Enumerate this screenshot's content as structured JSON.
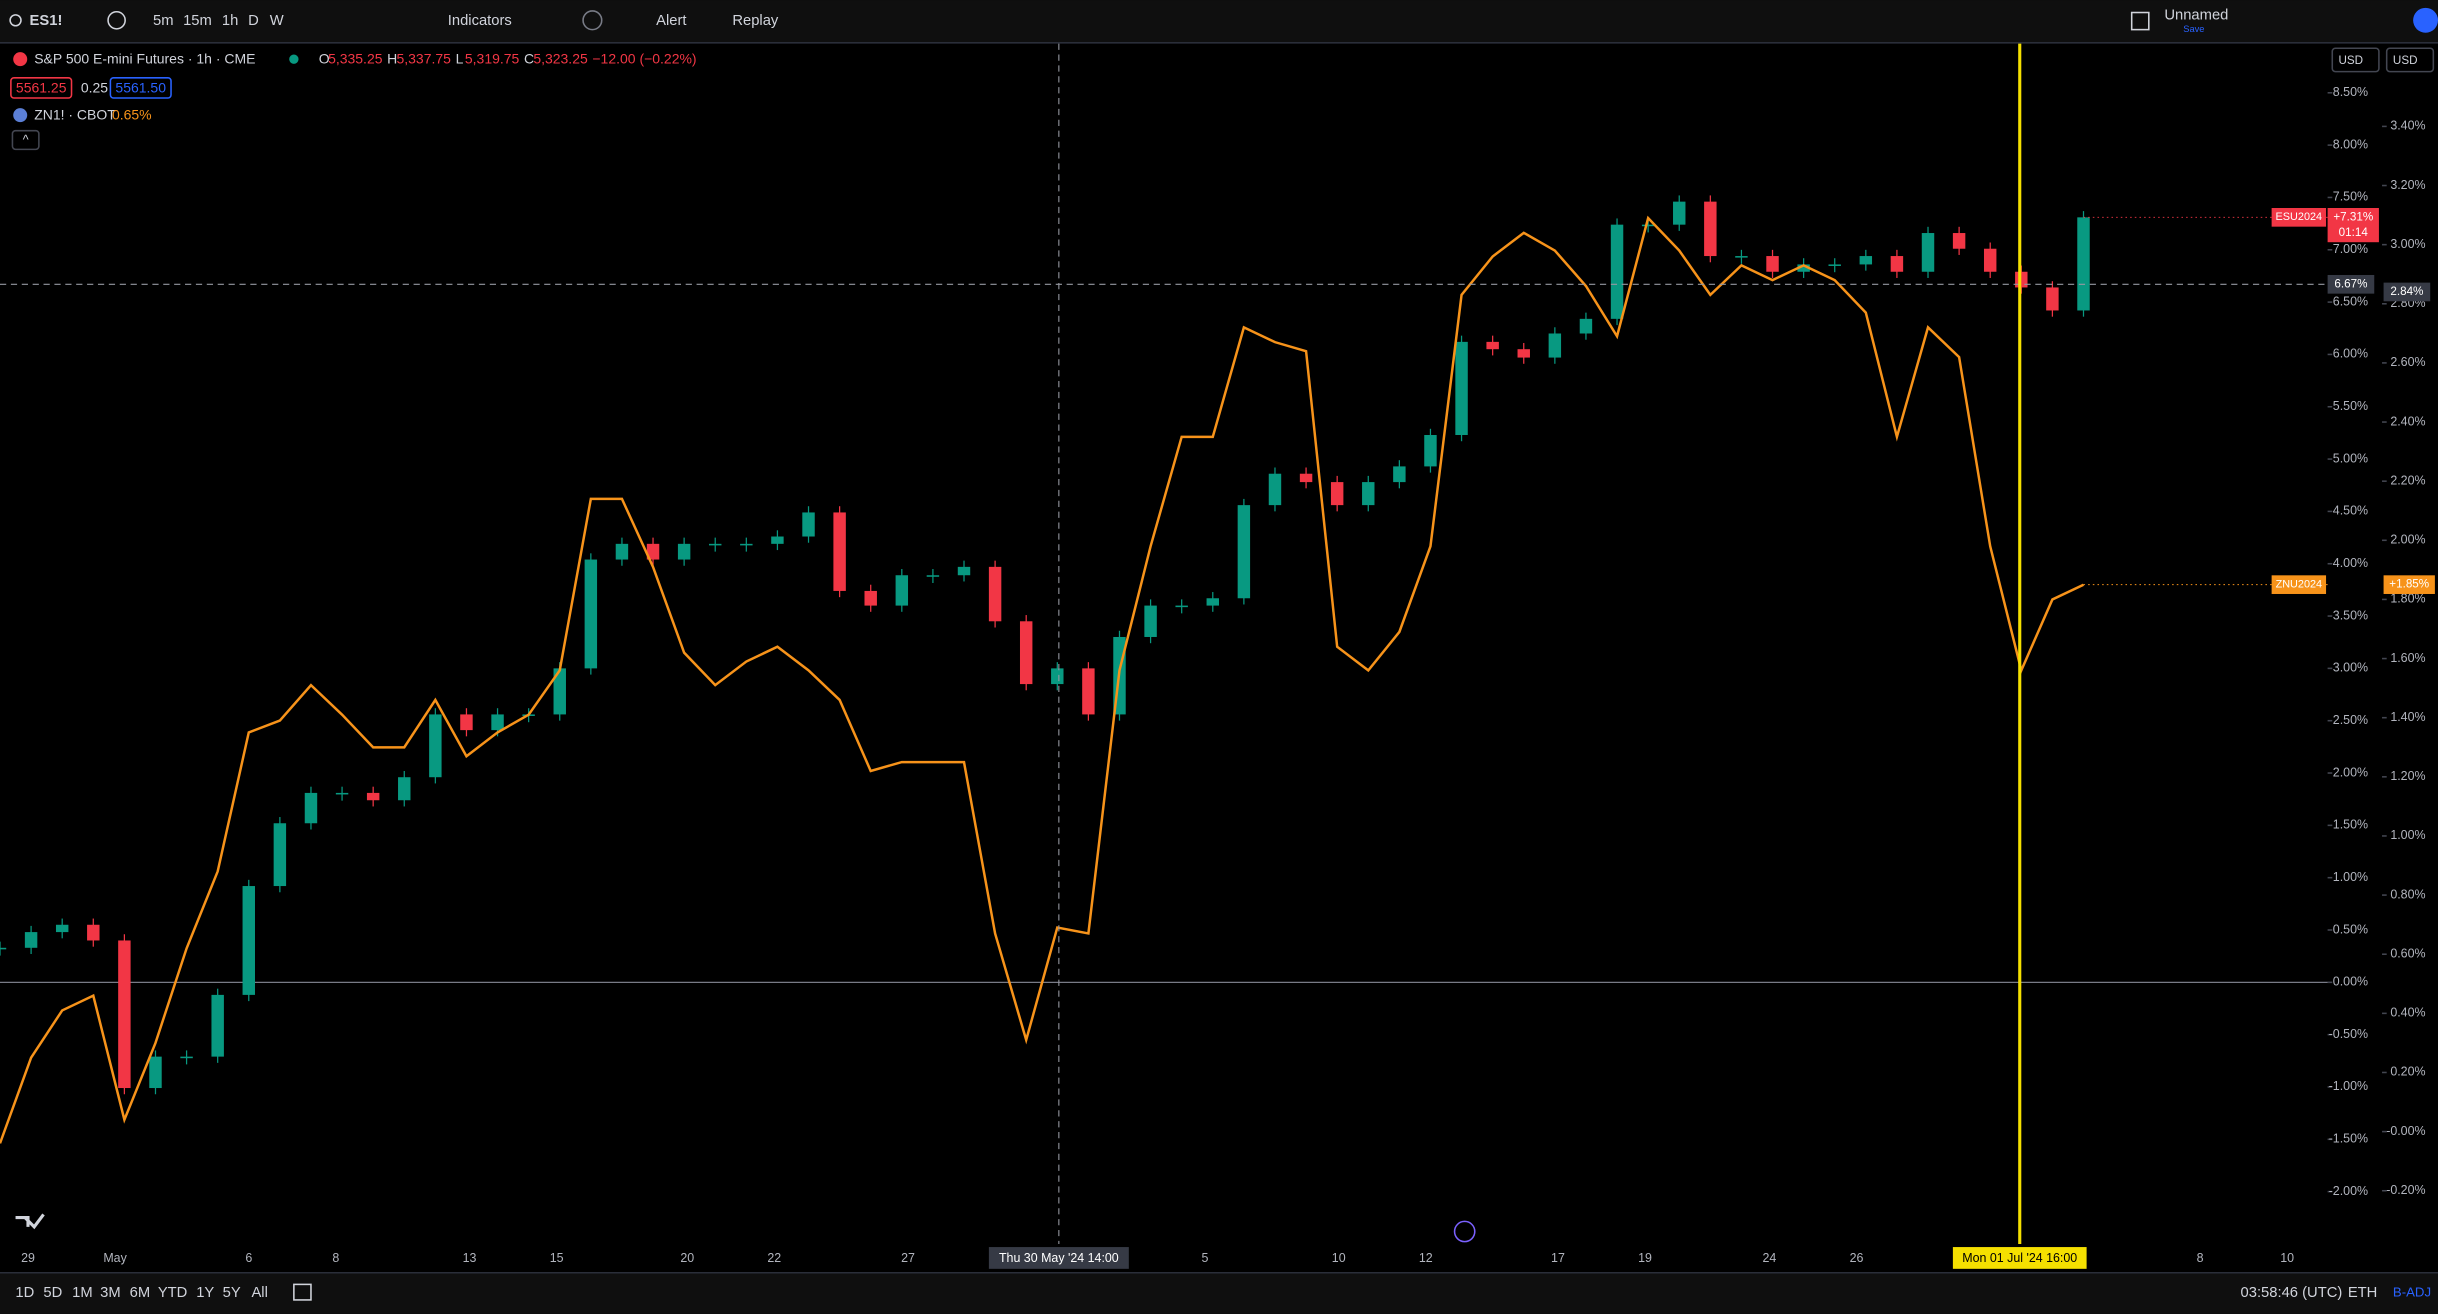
{
  "toolbar": {
    "symbol": "ES1!",
    "intervals": [
      "5m",
      "15m",
      "1h",
      "D",
      "W"
    ],
    "indicators": "Indicators",
    "alert": "Alert",
    "replay": "Replay",
    "layout_name": "Unnamed",
    "save": "Save"
  },
  "legend": {
    "main": "S&P 500 E-mini Futures · 1h · CME",
    "open_label": "O",
    "open": "5,335.25",
    "high_label": "H",
    "high": "5,337.75",
    "low_label": "L",
    "low": "5,319.75",
    "close_label": "C",
    "close": "5,323.25",
    "change": "−12.00 (−0.22%)",
    "bid": "5561.25",
    "spread": "0.25",
    "ask": "5561.50",
    "compare": "ZN1! · CBOT",
    "compare_change": "0.65%"
  },
  "currency": [
    "USD",
    "USD"
  ],
  "chart_data": {
    "type": "line",
    "series": [
      {
        "name": "ESU2024",
        "style": "candles",
        "up_color": "#089981",
        "down_color": "#f23645",
        "color": "#f23645",
        "last_label": "+7.31%",
        "countdown": "01:14",
        "values": [
          0.33,
          0.48,
          0.55,
          0.4,
          -1.01,
          -0.71,
          -0.71,
          -0.12,
          0.92,
          1.52,
          1.81,
          1.81,
          1.74,
          1.96,
          2.56,
          2.41,
          2.56,
          2.56,
          3.0,
          4.04,
          4.19,
          4.04,
          4.19,
          4.19,
          4.19,
          4.26,
          4.49,
          3.74,
          3.6,
          3.89,
          3.89,
          3.97,
          3.45,
          2.85,
          3.0,
          2.56,
          3.3,
          3.6,
          3.6,
          3.67,
          4.56,
          4.86,
          4.78,
          4.56,
          4.78,
          4.93,
          5.23,
          6.12,
          6.05,
          5.97,
          6.2,
          6.34,
          7.24,
          7.24,
          7.46,
          6.94,
          6.94,
          6.79,
          6.86,
          6.86,
          6.94,
          6.79,
          7.16,
          7.01,
          6.79,
          6.64,
          6.42,
          7.31
        ]
      },
      {
        "name": "ZNU2024",
        "style": "line",
        "color": "#f7931a",
        "axis": "y2",
        "last_label": "+1.85%",
        "values": [
          -0.04,
          0.25,
          0.41,
          0.46,
          0.04,
          0.3,
          0.62,
          0.88,
          1.35,
          1.39,
          1.51,
          1.41,
          1.3,
          1.3,
          1.46,
          1.27,
          1.35,
          1.41,
          1.56,
          2.14,
          2.14,
          1.91,
          1.62,
          1.51,
          1.59,
          1.64,
          1.56,
          1.46,
          1.22,
          1.25,
          1.25,
          1.25,
          0.67,
          0.31,
          0.69,
          0.67,
          1.56,
          1.98,
          2.35,
          2.35,
          2.72,
          2.67,
          2.64,
          1.64,
          1.56,
          1.69,
          1.98,
          2.83,
          2.96,
          3.04,
          2.98,
          2.86,
          2.69,
          3.09,
          2.98,
          2.83,
          2.93,
          2.88,
          2.93,
          2.88,
          2.77,
          2.35,
          2.72,
          2.62,
          1.98,
          1.56,
          1.8,
          1.85
        ]
      }
    ],
    "ylim": [
      -2.5,
      8.97
    ],
    "yticks": [
      {
        "value": 8.5,
        "label": "8.50%"
      },
      {
        "value": 8,
        "label": "8.00%"
      },
      {
        "value": 7.5,
        "label": "7.50%"
      },
      {
        "value": 7,
        "label": "7.00%"
      },
      {
        "value": 6.5,
        "label": "6.50%"
      },
      {
        "value": 6,
        "label": "6.00%"
      },
      {
        "value": 5.5,
        "label": "5.50%"
      },
      {
        "value": 5,
        "label": "5.00%"
      },
      {
        "value": 4.5,
        "label": "4.50%"
      },
      {
        "value": 4,
        "label": "4.00%"
      },
      {
        "value": 3.5,
        "label": "3.50%"
      },
      {
        "value": 3,
        "label": "3.00%"
      },
      {
        "value": 2.5,
        "label": "2.50%"
      },
      {
        "value": 2,
        "label": "2.00%"
      },
      {
        "value": 1.5,
        "label": "1.50%"
      },
      {
        "value": 1,
        "label": "1.00%"
      },
      {
        "value": 0.5,
        "label": "0.50%"
      },
      {
        "value": 0,
        "label": "0.00%"
      },
      {
        "value": -0.5,
        "label": "-0.50%"
      },
      {
        "value": -1,
        "label": "-1.00%"
      },
      {
        "value": -1.5,
        "label": "-1.50%"
      },
      {
        "value": -2,
        "label": "-2.00%"
      }
    ],
    "y2lim": [
      -0.38,
      3.68
    ],
    "y2ticks": [
      {
        "value": 3.4,
        "label": "3.40%"
      },
      {
        "value": 3.2,
        "label": "3.20%"
      },
      {
        "value": 3,
        "label": "3.00%"
      },
      {
        "value": 2.8,
        "label": "2.80%"
      },
      {
        "value": 2.6,
        "label": "2.60%"
      },
      {
        "value": 2.4,
        "label": "2.40%"
      },
      {
        "value": 2.2,
        "label": "2.20%"
      },
      {
        "value": 2,
        "label": "2.00%"
      },
      {
        "value": 1.8,
        "label": "1.80%"
      },
      {
        "value": 1.6,
        "label": "1.60%"
      },
      {
        "value": 1.4,
        "label": "1.40%"
      },
      {
        "value": 1.2,
        "label": "1.20%"
      },
      {
        "value": 1,
        "label": "1.00%"
      },
      {
        "value": 0.8,
        "label": "0.80%"
      },
      {
        "value": 0.6,
        "label": "0.60%"
      },
      {
        "value": 0.4,
        "label": "0.40%"
      },
      {
        "value": 0.2,
        "label": "0.20%"
      },
      {
        "value": 0,
        "label": "-0.00%"
      },
      {
        "value": -0.2,
        "label": "-0.20%"
      }
    ],
    "x_labels": [
      "29",
      "May",
      "6",
      "8",
      "13",
      "15",
      "20",
      "22",
      "27",
      "5",
      "10",
      "12",
      "17",
      "19",
      "24",
      "26",
      "8",
      "10"
    ],
    "crosshair": {
      "y": {
        "value": 6.67,
        "label": "6.67%"
      },
      "y2": {
        "value": 2.84,
        "label": "2.84%"
      },
      "x_label": "Thu 30 May '24  14:00"
    },
    "marker": {
      "x_label": "Mon 01 Jul '24  16:00",
      "color": "#f5e000"
    }
  },
  "bottom_bar": {
    "ranges": [
      "1D",
      "5D",
      "1M",
      "3M",
      "6M",
      "YTD",
      "1Y",
      "5Y",
      "All"
    ],
    "clock": "03:58:46 (UTC)",
    "session": "ETH",
    "adjust": "B-ADJ"
  }
}
